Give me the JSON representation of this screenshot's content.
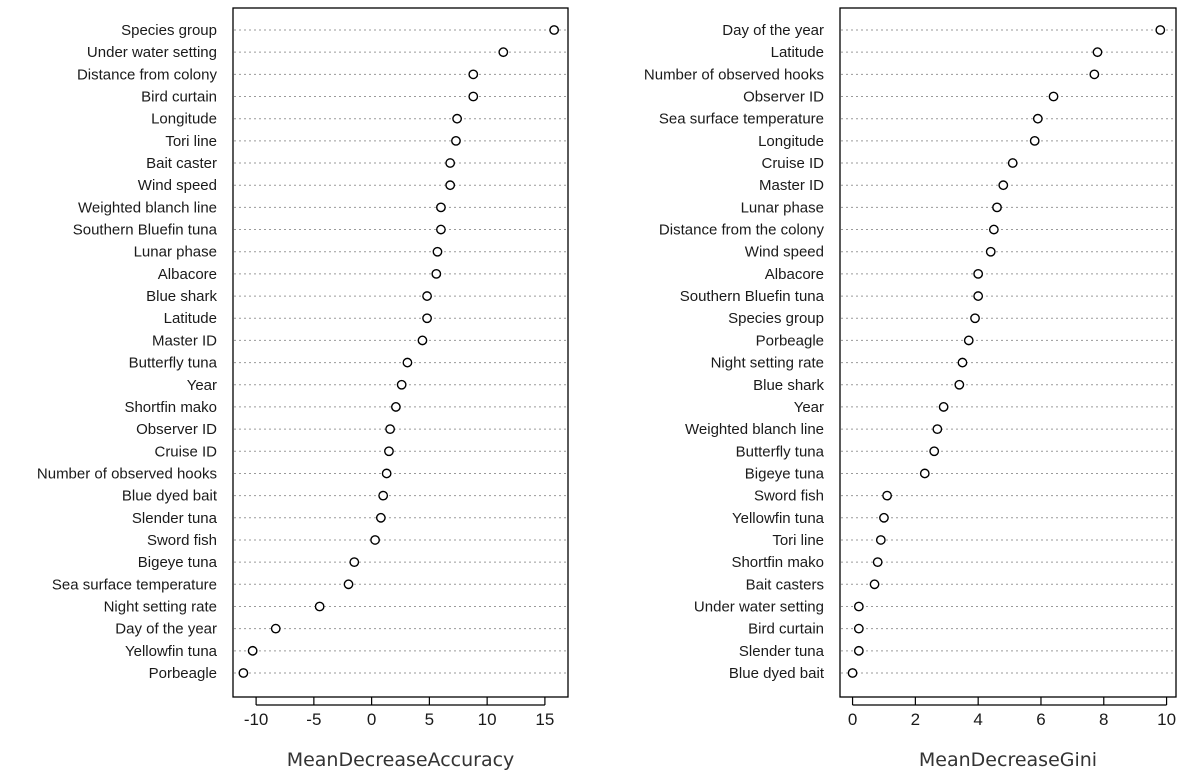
{
  "chart_data": [
    {
      "type": "scatter",
      "style": "dotchart",
      "xlabel": "MeanDecreaseAccuracy",
      "xlim": [
        -12,
        17
      ],
      "xticks": [
        -10,
        -5,
        0,
        5,
        10,
        15
      ],
      "grid": "horizontal dotted",
      "categories": [
        "Species group",
        "Under water setting",
        "Distance from colony",
        "Bird curtain",
        "Longitude",
        "Tori line",
        "Bait caster",
        "Wind speed",
        "Weighted blanch line",
        "Southern Bluefin tuna",
        "Lunar phase",
        "Albacore",
        "Blue shark",
        "Latitude",
        "Master ID",
        "Butterfly tuna",
        "Year",
        "Shortfin mako",
        "Observer ID",
        "Cruise ID",
        "Number of observed hooks",
        "Blue dyed bait",
        "Slender tuna",
        "Sword fish",
        "Bigeye tuna",
        "Sea surface temperature",
        "Night setting rate",
        "Day of the year",
        "Yellowfin tuna",
        "Porbeagle"
      ],
      "values": [
        15.8,
        11.4,
        8.8,
        8.8,
        7.4,
        7.3,
        6.8,
        6.8,
        6.0,
        6.0,
        5.7,
        5.6,
        4.8,
        4.8,
        4.4,
        3.1,
        2.6,
        2.1,
        1.6,
        1.5,
        1.3,
        1.0,
        0.8,
        0.3,
        -1.5,
        -2.0,
        -4.5,
        -8.3,
        -10.3,
        -11.1
      ]
    },
    {
      "type": "scatter",
      "style": "dotchart",
      "xlabel": "MeanDecreaseGini",
      "xlim": [
        -0.4,
        10.3
      ],
      "xticks": [
        0,
        2,
        4,
        6,
        8,
        10
      ],
      "grid": "horizontal dotted",
      "categories": [
        "Day of the year",
        "Latitude",
        "Number of observed hooks",
        "Observer ID",
        "Sea surface temperature",
        "Longitude",
        "Cruise ID",
        "Master ID",
        "Lunar phase",
        "Distance from the colony",
        "Wind speed",
        "Albacore",
        "Southern Bluefin tuna",
        "Species group",
        "Porbeagle",
        "Night setting rate",
        "Blue shark",
        "Year",
        "Weighted blanch line",
        "Butterfly tuna",
        "Bigeye tuna",
        "Sword fish",
        "Yellowfin tuna",
        "Tori line",
        "Shortfin mako",
        "Bait casters",
        "Under water setting",
        "Bird curtain",
        "Slender tuna",
        "Blue dyed bait"
      ],
      "values": [
        9.8,
        7.8,
        7.7,
        6.4,
        5.9,
        5.8,
        5.1,
        4.8,
        4.6,
        4.5,
        4.4,
        4.0,
        4.0,
        3.9,
        3.7,
        3.5,
        3.4,
        2.9,
        2.7,
        2.6,
        2.3,
        1.1,
        1.0,
        0.9,
        0.8,
        0.7,
        0.2,
        0.2,
        0.2,
        0.0
      ]
    }
  ]
}
